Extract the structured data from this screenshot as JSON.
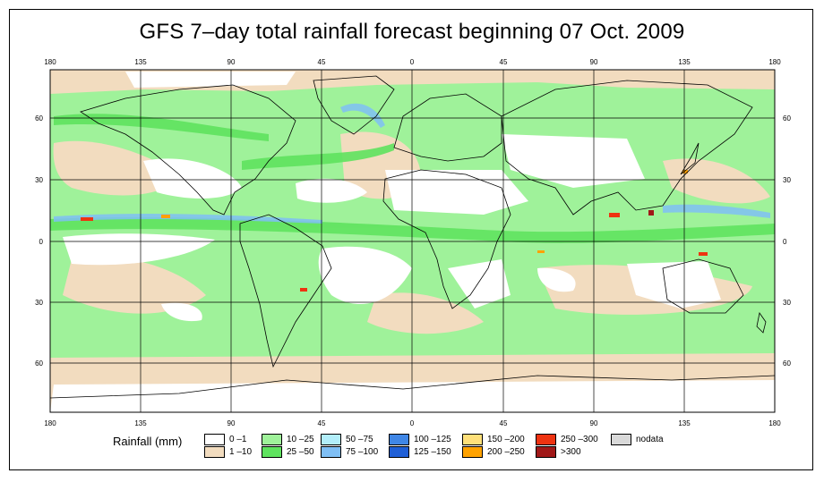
{
  "title": "GFS 7–day total rainfall forecast beginning 07 Oct. 2009",
  "lon_labels_top": [
    "180",
    "135",
    "90",
    "45",
    "0",
    "45",
    "90",
    "135",
    "180"
  ],
  "lon_labels_bottom": [
    "180",
    "135",
    "90",
    "45",
    "0",
    "45",
    "90",
    "135",
    "180"
  ],
  "lat_labels_left": [
    "60",
    "30",
    "0",
    "30",
    "60"
  ],
  "lat_labels_right": [
    "60",
    "30",
    "0",
    "30",
    "60"
  ],
  "legend": {
    "title": "Rainfall (mm)",
    "items": [
      {
        "label": "0 –1",
        "color": "#ffffff"
      },
      {
        "label": "1 –10",
        "color": "#f2dcbf"
      },
      {
        "label": "10 –25",
        "color": "#9ff29a"
      },
      {
        "label": "25 –50",
        "color": "#5fe35f"
      },
      {
        "label": "50 –75",
        "color": "#b2eefa"
      },
      {
        "label": "75 –100",
        "color": "#7fbff5"
      },
      {
        "label": "100 –125",
        "color": "#3f86e6"
      },
      {
        "label": "125 –150",
        "color": "#1f5fd6"
      },
      {
        "label": "150 –200",
        "color": "#ffe07a"
      },
      {
        "label": "200 –250",
        "color": "#ffa200"
      },
      {
        "label": "250 –300",
        "color": "#ee3311"
      },
      {
        "label": ">300",
        "color": "#a01818"
      },
      {
        "label": "nodata",
        "color": "#d9d9d9"
      }
    ]
  }
}
